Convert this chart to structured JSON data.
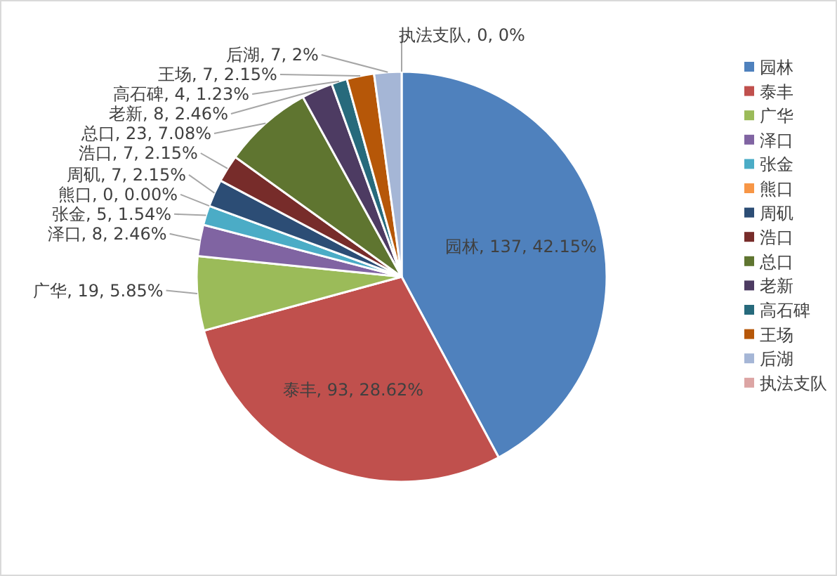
{
  "chart_data": {
    "type": "pie",
    "categories": [
      "园林",
      "泰丰",
      "广华",
      "泽口",
      "张金",
      "熊口",
      "周矶",
      "浩口",
      "总口",
      "老新",
      "高石碑",
      "王场",
      "后湖",
      "执法支队"
    ],
    "values": [
      137,
      93,
      19,
      8,
      5,
      0,
      7,
      7,
      23,
      8,
      4,
      7,
      7,
      0
    ],
    "value_labels": [
      "园林, 137, 42.15%",
      "泰丰, 93, 28.62%",
      "广华, 19, 5.85%",
      "泽口, 8, 2.46%",
      "张金, 5, 1.54%",
      "熊口, 0, 0.00%",
      "周矶, 7, 2.15%",
      "浩口, 7, 2.15%",
      "总口, 23, 7.08%",
      "老新, 8, 2.46%",
      "高石碑, 4, 1.23%",
      "王场, 7, 2.15%",
      "后湖, 7, 2%",
      "执法支队, 0, 0%"
    ],
    "colors": [
      "#4f81bd",
      "#c0504d",
      "#9bbb59",
      "#8064a2",
      "#4bacc6",
      "#f79646",
      "#2c4d75",
      "#772c2a",
      "#5f7530",
      "#4d3b62",
      "#276a7c",
      "#b65708",
      "#a5b6d6",
      "#dca5a4"
    ],
    "legend": "right"
  }
}
